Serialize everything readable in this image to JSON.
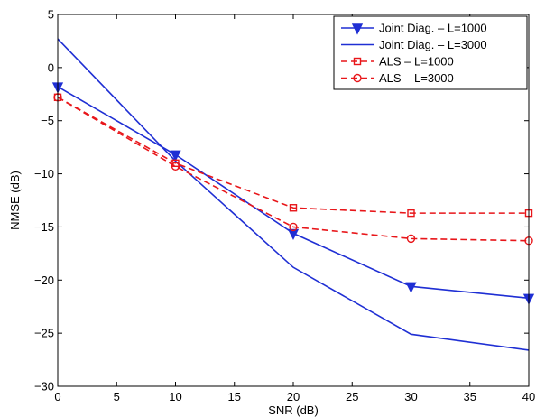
{
  "chart_data": {
    "type": "line",
    "title": "",
    "xlabel": "SNR (dB)",
    "ylabel": "NMSE (dB)",
    "xlim": [
      0,
      40
    ],
    "ylim": [
      -30,
      5
    ],
    "xticks": [
      0,
      5,
      10,
      15,
      20,
      25,
      30,
      35,
      40
    ],
    "yticks": [
      5,
      0,
      -5,
      -10,
      -15,
      -20,
      -25,
      -30
    ],
    "grid": false,
    "legend_position": "top-right",
    "x": [
      0,
      10,
      20,
      30,
      40
    ],
    "series": [
      {
        "name": "Joint Diag. – L=1000",
        "values": [
          -1.8,
          -8.2,
          -15.6,
          -20.6,
          -21.7
        ],
        "color": "#1f2fd4",
        "dash": "solid",
        "marker": "triangle-down"
      },
      {
        "name": "Joint Diag. – L=3000",
        "values": [
          2.7,
          -8.8,
          -18.8,
          -25.1,
          -26.6
        ],
        "color": "#1f2fd4",
        "dash": "solid",
        "marker": "none"
      },
      {
        "name": "ALS – L=1000",
        "values": [
          -2.8,
          -9.0,
          -13.2,
          -13.7,
          -13.7
        ],
        "color": "#e8161a",
        "dash": "dashed",
        "marker": "square"
      },
      {
        "name": "ALS – L=3000",
        "values": [
          -2.8,
          -9.3,
          -15.0,
          -16.1,
          -16.3
        ],
        "color": "#e8161a",
        "dash": "dashed",
        "marker": "circle"
      }
    ]
  }
}
